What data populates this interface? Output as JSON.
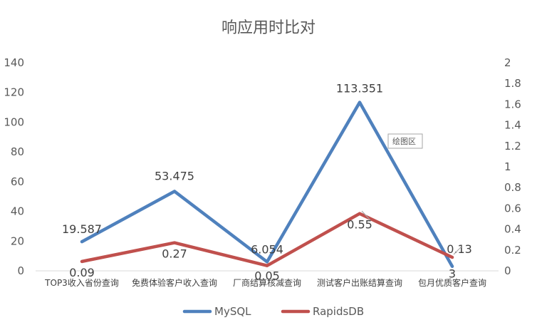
{
  "chart_data": {
    "type": "line",
    "title": "响应用时比对",
    "categories": [
      "TOP3收入省份查询",
      "免费体验客户收入查询",
      "厂商结算核减查询",
      "测试客户出账结算查询",
      "包月优质客户查询"
    ],
    "series": [
      {
        "name": "MySQL",
        "axis": "left",
        "color": "#4f81bd",
        "values": [
          19.587,
          53.475,
          6.054,
          113.351,
          3
        ],
        "labels": [
          "19.587",
          "53.475",
          "6.054",
          "113.351",
          "3"
        ]
      },
      {
        "name": "RapidsDB",
        "axis": "right",
        "color": "#c0504d",
        "values": [
          0.09,
          0.27,
          0.05,
          0.55,
          0.13
        ],
        "labels": [
          "0.09",
          "0.27",
          "0.05",
          "0.55",
          "0.13"
        ]
      }
    ],
    "y_left": {
      "range": [
        0,
        140
      ],
      "ticks": [
        "0",
        "20",
        "40",
        "60",
        "80",
        "100",
        "120",
        "140"
      ]
    },
    "y_right": {
      "range": [
        0,
        2
      ],
      "ticks": [
        "0",
        "0.2",
        "0.4",
        "0.6",
        "0.8",
        "1",
        "1.2",
        "1.4",
        "1.6",
        "1.8",
        "2"
      ]
    },
    "grid": false,
    "legend_position": "bottom",
    "tooltip": "绘图区"
  }
}
